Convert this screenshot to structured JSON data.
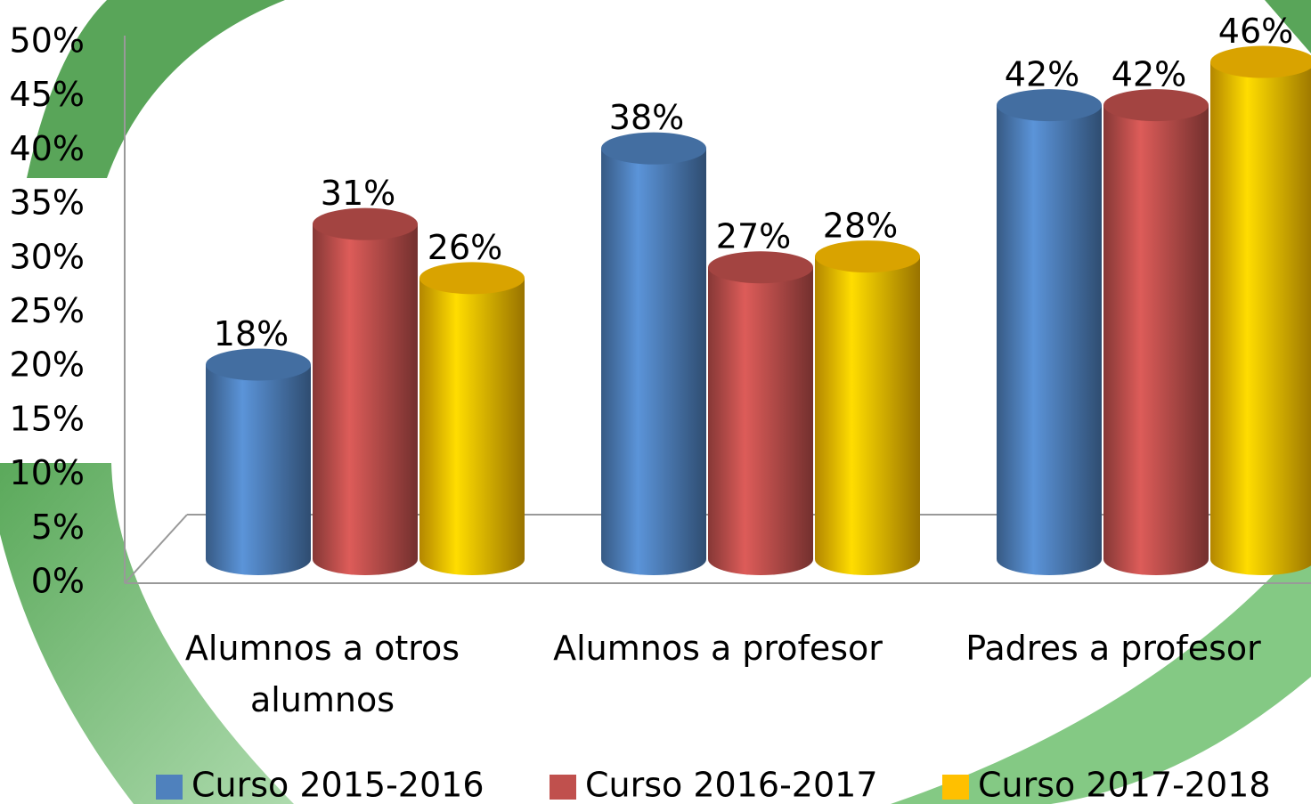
{
  "chart_data": {
    "type": "bar3d",
    "categories": [
      "Alumnos a otros alumnos",
      "Alumnos a profesor",
      "Padres a profesor"
    ],
    "series": [
      {
        "name": "Curso 2015-2016",
        "color": "#4f81bd",
        "values": [
          18,
          38,
          42
        ],
        "value_labels": [
          "18%",
          "38%",
          "42%"
        ]
      },
      {
        "name": "Curso 2016-2017",
        "color": "#c0504d",
        "values": [
          31,
          27,
          42
        ],
        "value_labels": [
          "31%",
          "27%",
          "42%"
        ]
      },
      {
        "name": "Curso 2017-2018",
        "color": "#ffc000",
        "values": [
          26,
          28,
          46
        ],
        "value_labels": [
          "26%",
          "28%",
          "46%"
        ]
      }
    ],
    "ylim": [
      0,
      50
    ],
    "yticks": [
      {
        "value": 0,
        "label": "0%"
      },
      {
        "value": 5,
        "label": "5%"
      },
      {
        "value": 10,
        "label": "10%"
      },
      {
        "value": 15,
        "label": "15%"
      },
      {
        "value": 20,
        "label": "20%"
      },
      {
        "value": 25,
        "label": "25%"
      },
      {
        "value": 30,
        "label": "30%"
      },
      {
        "value": 35,
        "label": "35%"
      },
      {
        "value": 40,
        "label": "40%"
      },
      {
        "value": 45,
        "label": "45%"
      },
      {
        "value": 50,
        "label": "50%"
      }
    ],
    "legend": "bottom"
  }
}
